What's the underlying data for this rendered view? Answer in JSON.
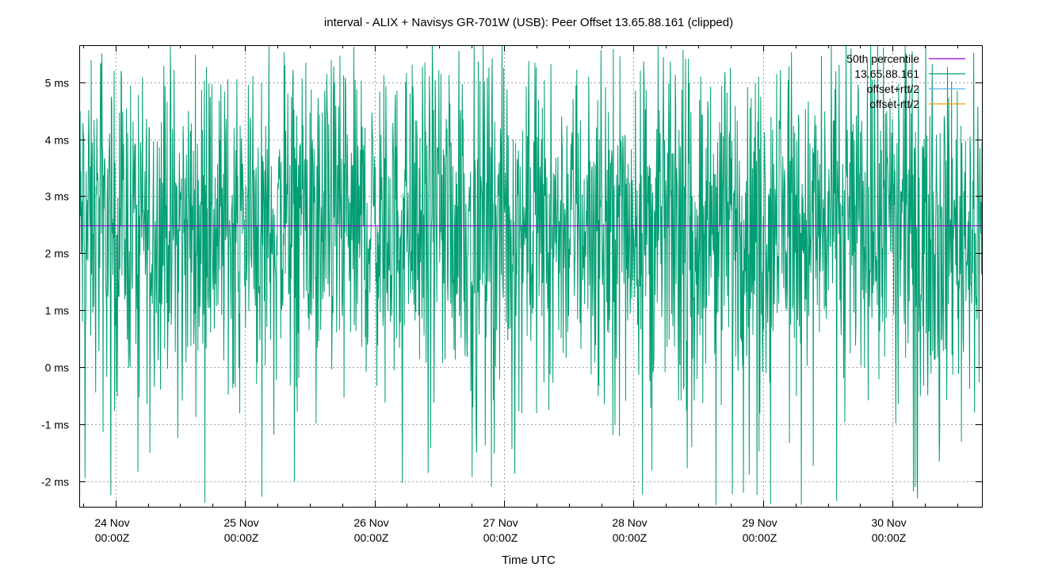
{
  "chart_data": {
    "type": "line",
    "title": "interval - ALIX + Navisys GR-701W (USB): Peer Offset 13.65.88.161 (clipped)",
    "xlabel": "Time UTC",
    "ylabel": "",
    "x_unit": "days since 24 Nov 00:00Z",
    "xlim": [
      -0.28,
      6.69
    ],
    "ylim": [
      -2.45,
      5.65
    ],
    "x_ticks": [
      {
        "x": 0,
        "line1": "24 Nov",
        "line2": "00:00Z"
      },
      {
        "x": 1,
        "line1": "25 Nov",
        "line2": "00:00Z"
      },
      {
        "x": 2,
        "line1": "26 Nov",
        "line2": "00:00Z"
      },
      {
        "x": 3,
        "line1": "27 Nov",
        "line2": "00:00Z"
      },
      {
        "x": 4,
        "line1": "28 Nov",
        "line2": "00:00Z"
      },
      {
        "x": 5,
        "line1": "29 Nov",
        "line2": "00:00Z"
      },
      {
        "x": 6,
        "line1": "30 Nov",
        "line2": "00:00Z"
      }
    ],
    "y_ticks": [
      {
        "y": -2,
        "label": "-2 ms"
      },
      {
        "y": -1,
        "label": "-1 ms"
      },
      {
        "y": 0,
        "label": "0 ms"
      },
      {
        "y": 1,
        "label": "1 ms"
      },
      {
        "y": 2,
        "label": "2 ms"
      },
      {
        "y": 3,
        "label": "3 ms"
      },
      {
        "y": 4,
        "label": "4 ms"
      },
      {
        "y": 5,
        "label": "5 ms"
      }
    ],
    "grid": true,
    "legend_position": "top-right",
    "legend": [
      {
        "name": "50th percentile",
        "color": "#9400d3"
      },
      {
        "name": "13.65.88.161",
        "color": "#009e73"
      },
      {
        "name": "offset+rtt/2",
        "color": "#56b4e9"
      },
      {
        "name": "offset-rtt/2",
        "color": "#e6a000"
      }
    ],
    "series": [
      {
        "name": "50th percentile",
        "color": "#9400d3",
        "kind": "constant",
        "value": 2.48
      },
      {
        "name": "13.65.88.161",
        "color": "#009e73",
        "kind": "noise",
        "center": 2.48,
        "typical_range": [
          0.5,
          4.5
        ],
        "extreme_range": [
          -2.45,
          5.65
        ],
        "samples": 2200
      }
    ]
  }
}
